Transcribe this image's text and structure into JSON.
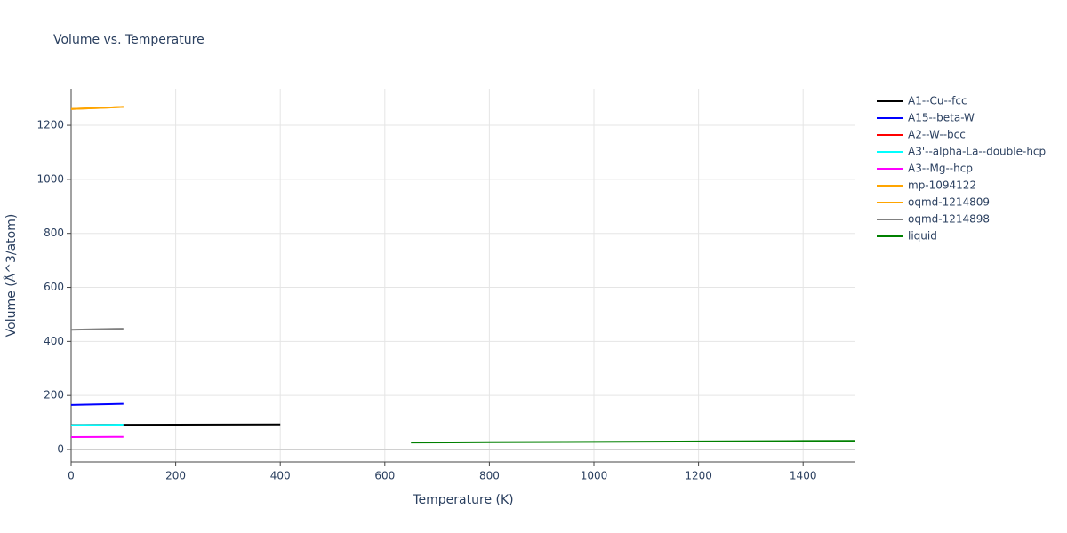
{
  "chart_data": {
    "type": "line",
    "title": "Volume vs. Temperature",
    "x_label": "Temperature (K)",
    "y_label": "Volume (Å^3/atom)",
    "xlim": [
      0,
      1500
    ],
    "ylim": [
      -46,
      1335
    ],
    "xticks": [
      0,
      200,
      400,
      600,
      800,
      1000,
      1200,
      1400
    ],
    "yticks": [
      0,
      200,
      400,
      600,
      800,
      1000,
      1200
    ],
    "grid": true,
    "legend": "right",
    "series": [
      {
        "name": "A1--Cu--fcc",
        "color": "#000000",
        "x": [
          0,
          100,
          200,
          300,
          400
        ],
        "values": [
          91,
          91.5,
          92,
          92.5,
          93
        ]
      },
      {
        "name": "A15--beta-W",
        "color": "#0000ff",
        "x": [
          0,
          50,
          100
        ],
        "values": [
          165,
          167,
          169
        ]
      },
      {
        "name": "A2--W--bcc",
        "color": "#ff0000",
        "x": [
          0,
          50,
          100
        ],
        "values": [
          90,
          91,
          92
        ]
      },
      {
        "name": "A3'--alpha-La--double-hcp",
        "color": "#00ffff",
        "x": [
          0,
          50,
          100
        ],
        "values": [
          90,
          91,
          92
        ]
      },
      {
        "name": "A3--Mg--hcp",
        "color": "#ff00ff",
        "x": [
          0,
          50,
          100
        ],
        "values": [
          46,
          46.5,
          47
        ]
      },
      {
        "name": "mp-1094122",
        "color": "#ffa500",
        "x": [
          0,
          50,
          100
        ],
        "values": [
          1260,
          1264,
          1268
        ]
      },
      {
        "name": "oqmd-1214809",
        "color": "#ffa500",
        "x": [
          0,
          50,
          100
        ],
        "values": [
          1260,
          1264,
          1268
        ]
      },
      {
        "name": "oqmd-1214898",
        "color": "#808080",
        "x": [
          0,
          50,
          100
        ],
        "values": [
          443,
          445,
          447
        ]
      },
      {
        "name": "liquid",
        "color": "#008000",
        "x": [
          650,
          800,
          1000,
          1200,
          1400,
          1500
        ],
        "values": [
          26,
          27,
          28.5,
          30,
          31.5,
          32
        ]
      }
    ]
  }
}
